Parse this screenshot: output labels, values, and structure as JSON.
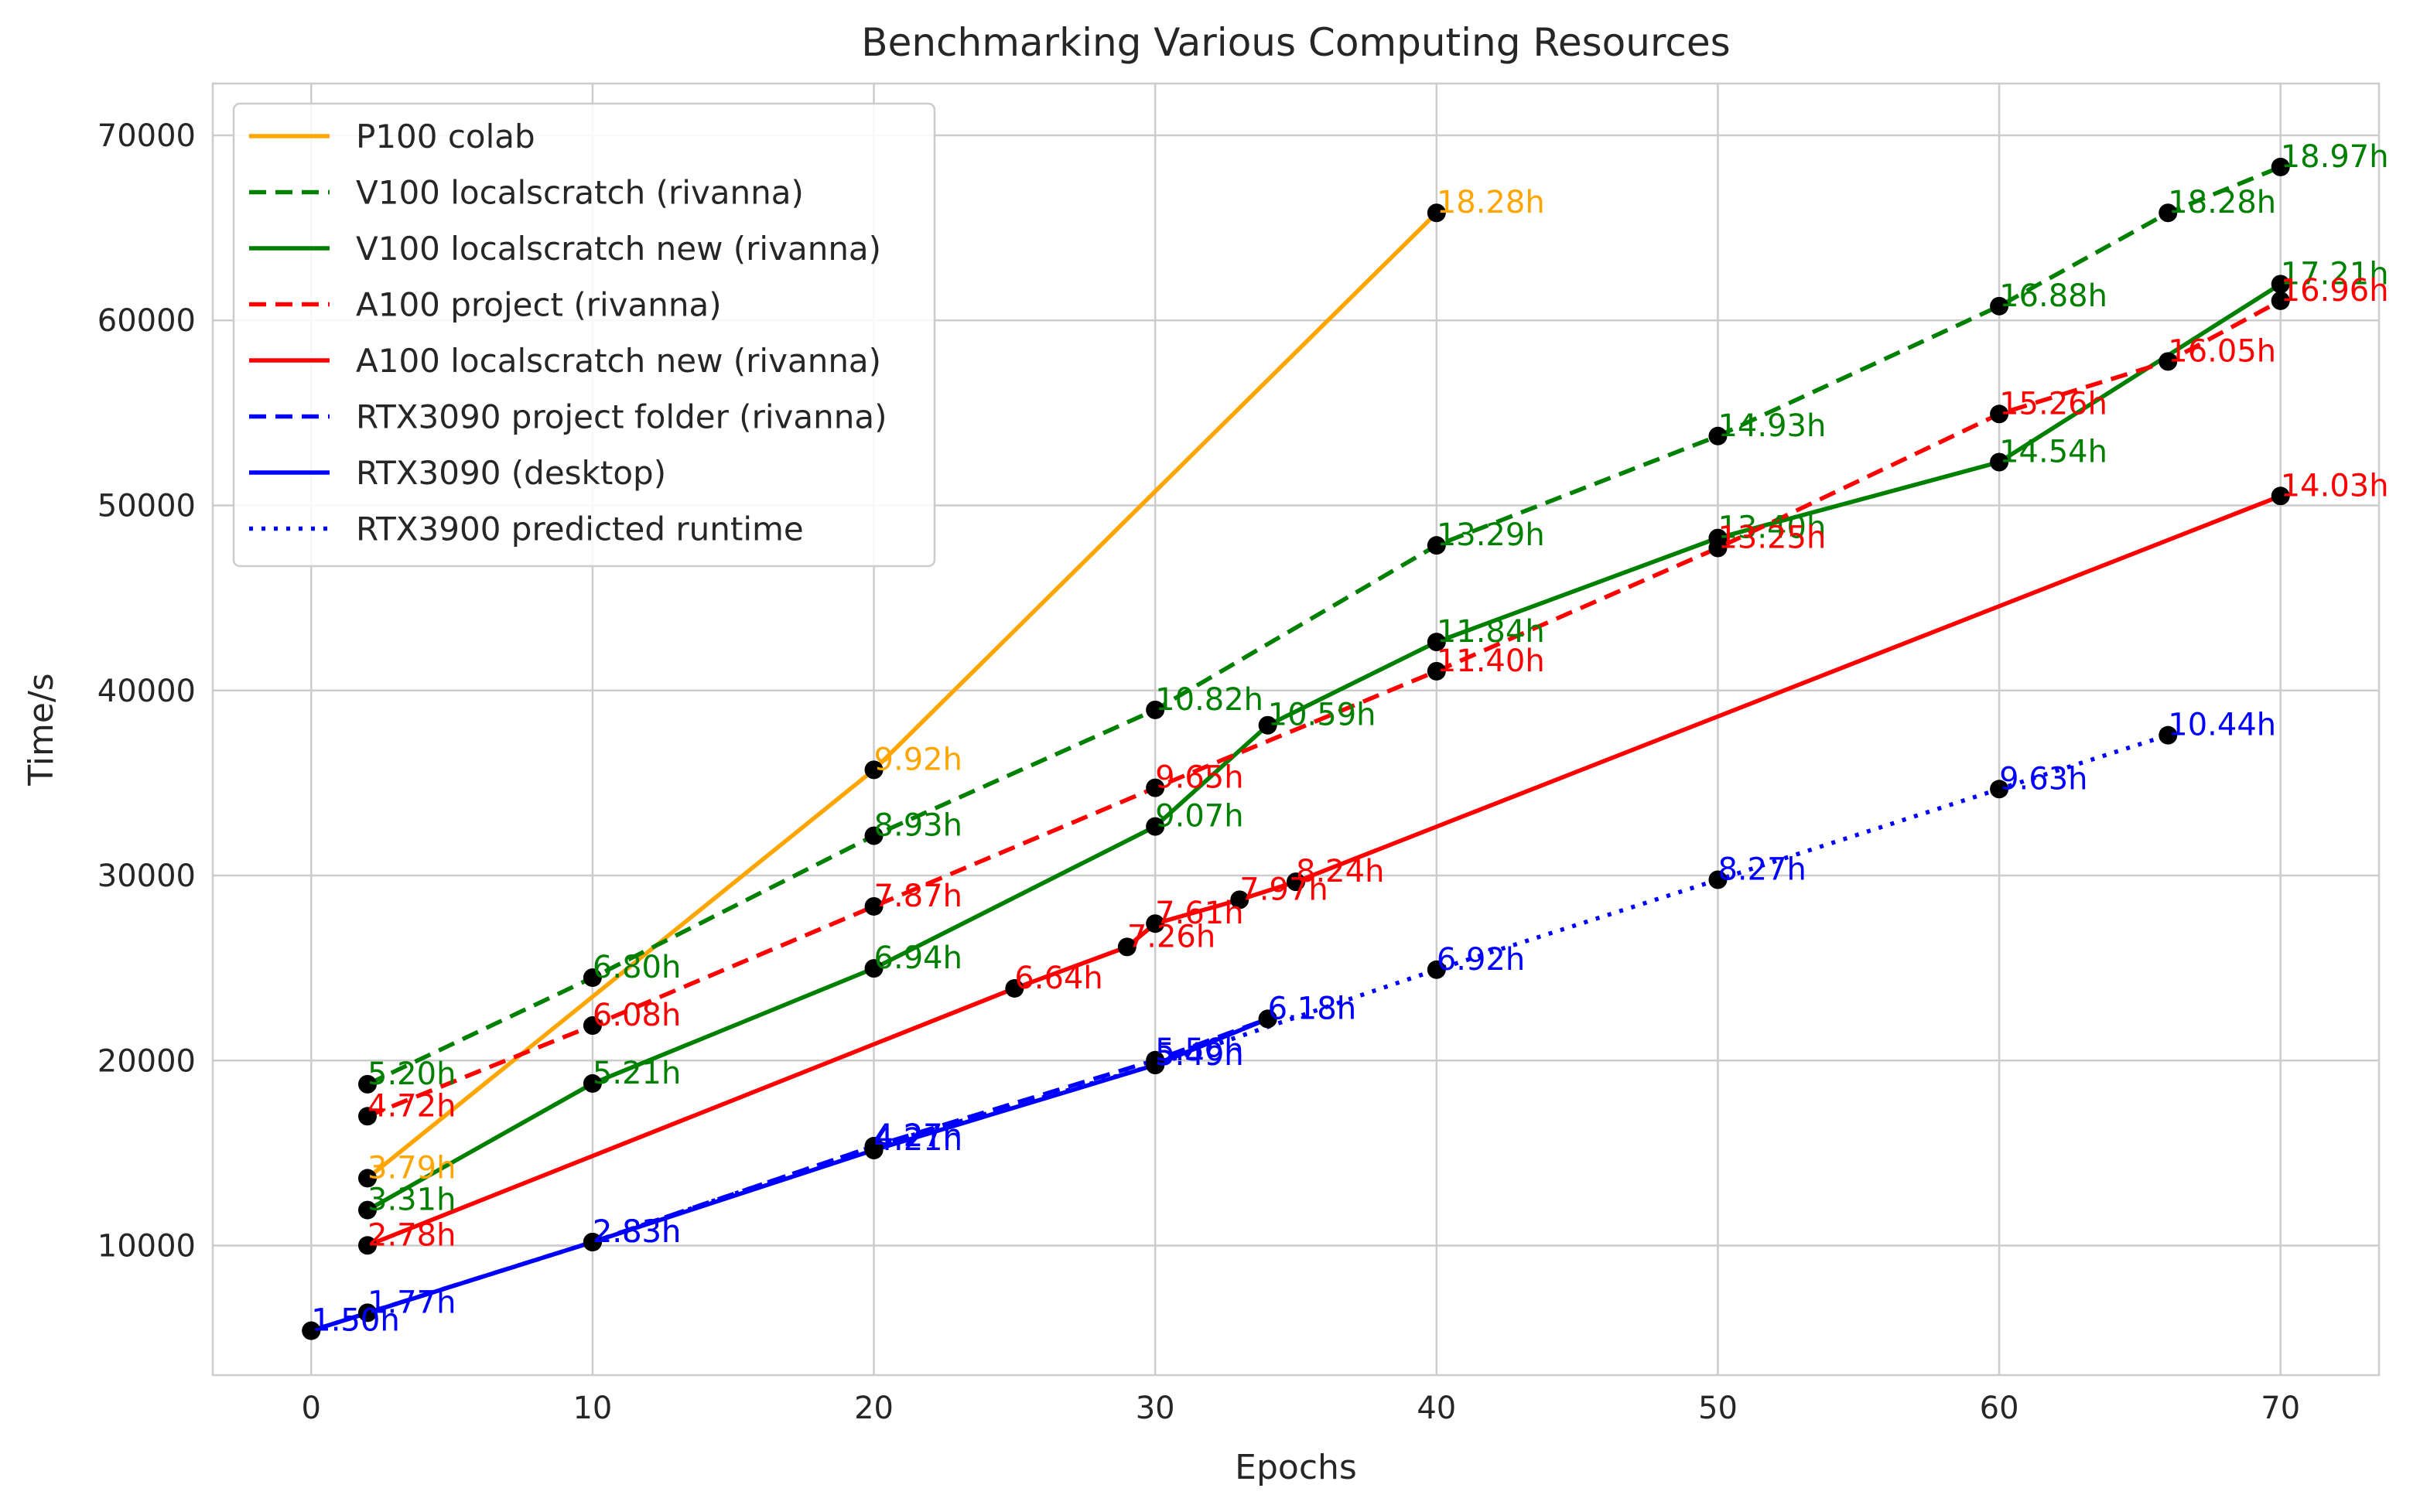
{
  "chart_data": {
    "type": "line",
    "title": "Benchmarking Various Computing Resources",
    "xlabel": "Epochs",
    "ylabel": "Time/s",
    "xlim": [
      -3.5,
      73.5
    ],
    "ylim": [
      3000,
      72800
    ],
    "xticks": [
      "0",
      "10",
      "20",
      "30",
      "40",
      "50",
      "60",
      "70"
    ],
    "yticks": [
      "10000",
      "20000",
      "30000",
      "40000",
      "50000",
      "60000",
      "70000"
    ],
    "grid": true,
    "legend_position": "top-left",
    "marker_color": "#000000",
    "series": [
      {
        "name": "P100 colab",
        "color": "#FFA500",
        "dash": "solid",
        "points": [
          [
            2,
            13640
          ],
          [
            20,
            35710
          ],
          [
            40,
            65810
          ]
        ],
        "labels": [
          "3.79h",
          "9.92h",
          "18.28h"
        ]
      },
      {
        "name": "V100 localscratch (rivanna)",
        "color": "#008000",
        "dash": "dashed",
        "points": [
          [
            2,
            18720
          ],
          [
            10,
            24480
          ],
          [
            20,
            32150
          ],
          [
            30,
            38950
          ],
          [
            40,
            47840
          ],
          [
            50,
            53750
          ],
          [
            60,
            60770
          ],
          [
            66,
            65810
          ],
          [
            70,
            68290
          ]
        ],
        "labels": [
          "5.20h",
          "6.80h",
          "8.93h",
          "10.82h",
          "13.29h",
          "14.93h",
          "16.88h",
          "18.28h",
          "18.97h"
        ]
      },
      {
        "name": "V100 localscratch new (rivanna)",
        "color": "#008000",
        "dash": "solid",
        "points": [
          [
            2,
            11920
          ],
          [
            10,
            18760
          ],
          [
            20,
            24980
          ],
          [
            30,
            32650
          ],
          [
            34,
            38120
          ],
          [
            40,
            42620
          ],
          [
            50,
            48240
          ],
          [
            60,
            52340
          ],
          [
            70,
            61960
          ]
        ],
        "labels": [
          "3.31h",
          "5.21h",
          "6.94h",
          "9.07h",
          "10.59h",
          "11.84h",
          "13.40h",
          "14.54h",
          "17.21h"
        ]
      },
      {
        "name": "A100 project (rivanna)",
        "color": "#FF0000",
        "dash": "dashed",
        "points": [
          [
            2,
            16990
          ],
          [
            10,
            21890
          ],
          [
            20,
            28330
          ],
          [
            30,
            34740
          ],
          [
            40,
            41040
          ],
          [
            50,
            47700
          ],
          [
            60,
            54940
          ],
          [
            66,
            57780
          ],
          [
            70,
            61060
          ]
        ],
        "labels": [
          "4.72h",
          "6.08h",
          "7.87h",
          "9.65h",
          "11.40h",
          "13.25h",
          "15.26h",
          "16.05h",
          "16.96h"
        ]
      },
      {
        "name": "A100 localscratch new (rivanna)",
        "color": "#FF0000",
        "dash": "solid",
        "points": [
          [
            2,
            10010
          ],
          [
            25,
            23900
          ],
          [
            29,
            26140
          ],
          [
            30,
            27400
          ],
          [
            33,
            28690
          ],
          [
            35,
            29660
          ],
          [
            70,
            50510
          ]
        ],
        "labels": [
          "2.78h",
          "6.64h",
          "7.26h",
          "7.61h",
          "7.97h",
          "8.24h",
          "14.03h"
        ]
      },
      {
        "name": "RTX3090 project folder (rivanna)",
        "color": "#0000FF",
        "dash": "dashed",
        "points": [
          [
            2,
            6370
          ],
          [
            10,
            10190
          ],
          [
            20,
            15370
          ],
          [
            30,
            20020
          ],
          [
            34,
            22250
          ]
        ],
        "labels": [
          "1.77h",
          "2.83h",
          "4.27h",
          "5.56h",
          "6.18h"
        ]
      },
      {
        "name": "RTX3090 (desktop)",
        "color": "#0000FF",
        "dash": "solid",
        "points": [
          [
            0,
            5400
          ],
          [
            10,
            10190
          ],
          [
            20,
            15160
          ],
          [
            30,
            19760
          ],
          [
            34,
            22250
          ]
        ],
        "labels": [
          "1.50h",
          "2.83h",
          "4.21h",
          "5.49h",
          "6.18h"
        ]
      },
      {
        "name": "RTX3900 predicted runtime",
        "color": "#0000FF",
        "dash": "dotted",
        "points": [
          [
            0,
            5400
          ],
          [
            10,
            10190
          ],
          [
            20,
            15370
          ],
          [
            30,
            19760
          ],
          [
            40,
            24910
          ],
          [
            50,
            29770
          ],
          [
            60,
            34670
          ],
          [
            66,
            37580
          ]
        ],
        "labels": [
          "1.50h",
          "2.83h",
          "4.27h",
          "5.49h",
          "6.92h",
          "8.27h",
          "9.63h",
          "10.44h"
        ]
      }
    ]
  }
}
